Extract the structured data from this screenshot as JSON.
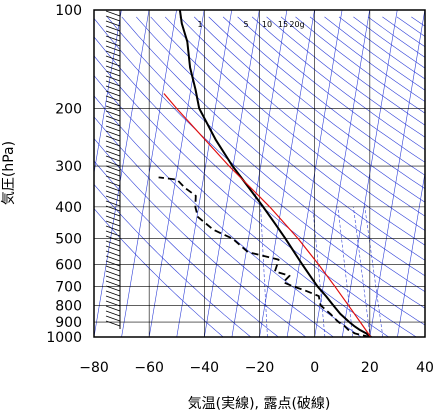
{
  "chart_data": {
    "type": "line",
    "subtype": "skew-T log-P diagram",
    "xlabel": "気温(実線), 露点(破線)",
    "ylabel": "気圧(hPa)",
    "xlim": [
      -80,
      40
    ],
    "ylim": [
      1000,
      100
    ],
    "y_scale": "log",
    "x_ticks": [
      "−80",
      "−60",
      "−40",
      "−20",
      "0",
      "20",
      "40"
    ],
    "y_ticks": [
      {
        "p": 100,
        "label": "100"
      },
      {
        "p": 200,
        "label": "200"
      },
      {
        "p": 300,
        "label": "300"
      },
      {
        "p": 400,
        "label": "400"
      },
      {
        "p": 500,
        "label": "500"
      },
      {
        "p": 600,
        "label": "600"
      },
      {
        "p": 700,
        "label": "700"
      },
      {
        "p": 800,
        "label": "800"
      },
      {
        "p": 900,
        "label": "900"
      },
      {
        "p": 1000,
        "label": "1000"
      }
    ],
    "mixing_ratio_labels": [
      "1",
      "5",
      "10",
      "15",
      "20g"
    ],
    "colors": {
      "background_lines": "#3040d8",
      "parcel": "#e01010",
      "profile": "#000000",
      "grid": "#000000"
    },
    "series": [
      {
        "style": "solid",
        "points": [
          {
            "p": 1000,
            "t": 20.5
          },
          {
            "p": 975,
            "t": 18.5
          },
          {
            "p": 950,
            "t": 15.8
          },
          {
            "p": 925,
            "t": 13.6
          },
          {
            "p": 900,
            "t": 11.6
          },
          {
            "p": 850,
            "t": 7.9
          },
          {
            "p": 800,
            "t": 4.8
          },
          {
            "p": 750,
            "t": 1.6
          },
          {
            "p": 700,
            "t": -2.1
          },
          {
            "p": 650,
            "t": -5.4
          },
          {
            "p": 600,
            "t": -8.9
          },
          {
            "p": 550,
            "t": -12.6
          },
          {
            "p": 500,
            "t": -16.6
          },
          {
            "p": 450,
            "t": -21.3
          },
          {
            "p": 400,
            "t": -26.6
          },
          {
            "p": 350,
            "t": -32.9
          },
          {
            "p": 300,
            "t": -40.2
          },
          {
            "p": 250,
            "t": -47.8
          },
          {
            "p": 200,
            "t": -55.8
          },
          {
            "p": 175,
            "t": -58.3
          },
          {
            "p": 150,
            "t": -61.6
          },
          {
            "p": 125,
            "t": -64.2
          },
          {
            "p": 110,
            "t": -67.3
          },
          {
            "p": 100,
            "t": -68.8
          }
        ]
      },
      {
        "style": "dashed",
        "points": [
          {
            "p": 1000,
            "t": 20.0
          },
          {
            "p": 975,
            "t": 14.3
          },
          {
            "p": 950,
            "t": 11.7
          },
          {
            "p": 925,
            "t": 10.1
          },
          {
            "p": 900,
            "t": 7.7
          },
          {
            "p": 850,
            "t": 4.3
          },
          {
            "p": 800,
            "t": 0.2
          },
          {
            "p": 750,
            "t": -1.0
          },
          {
            "p": 720,
            "t": -6.5
          },
          {
            "p": 700,
            "t": -11.0
          },
          {
            "p": 680,
            "t": -14.7
          },
          {
            "p": 650,
            "t": -12.8
          },
          {
            "p": 630,
            "t": -18.4
          },
          {
            "p": 600,
            "t": -18.0
          },
          {
            "p": 580,
            "t": -17.8
          },
          {
            "p": 550,
            "t": -29.4
          },
          {
            "p": 500,
            "t": -35.8
          },
          {
            "p": 470,
            "t": -43.2
          },
          {
            "p": 430,
            "t": -49.6
          },
          {
            "p": 400,
            "t": -51.2
          },
          {
            "p": 370,
            "t": -51.7
          },
          {
            "p": 350,
            "t": -56.1
          },
          {
            "p": 330,
            "t": -59.5
          },
          {
            "p": 325,
            "t": -66.3
          }
        ]
      },
      {
        "style": "parcel",
        "points": [
          {
            "p": 1000,
            "t": 20.3
          },
          {
            "p": 900,
            "t": 15.6
          },
          {
            "p": 800,
            "t": 10.3
          },
          {
            "p": 700,
            "t": 4.2
          },
          {
            "p": 600,
            "t": -3.0
          },
          {
            "p": 500,
            "t": -12.0
          },
          {
            "p": 400,
            "t": -24.2
          },
          {
            "p": 300,
            "t": -41.5
          },
          {
            "p": 200,
            "t": -64.0
          },
          {
            "p": 180,
            "t": -69.5
          }
        ]
      }
    ]
  }
}
